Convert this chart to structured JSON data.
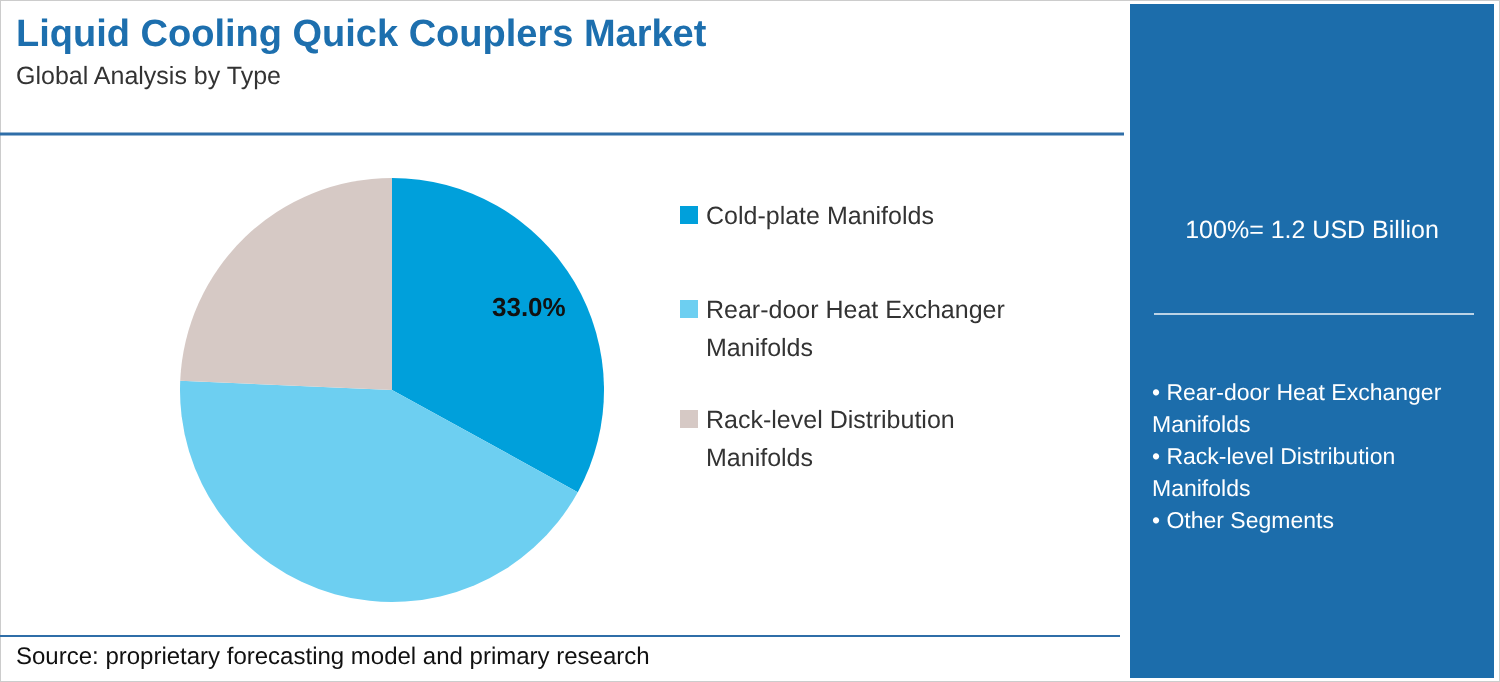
{
  "chart_data": {
    "type": "pie",
    "title": "Liquid Cooling Quick Couplers Market",
    "subtitle": "Global Analysis by Type",
    "categories": [
      "Cold-plate Manifolds",
      "Rear-door Heat Exchanger Manifolds",
      "Rack-level Distribution Manifolds"
    ],
    "values": [
      33.0,
      42.7,
      24.3
    ],
    "colors": [
      "#00a0db",
      "#6dcff1",
      "#d6c9c5"
    ],
    "value_labels": [
      "33.0%",
      null,
      null
    ],
    "legend": "right",
    "annotations": [
      "100%= 1.2 USD Billion",
      "• Rear-door Heat Exchanger Manifolds",
      "• Rack-level Distribution Manifolds",
      "• Other Segments",
      "Source: proprietary forecasting model and primary research"
    ]
  }
}
